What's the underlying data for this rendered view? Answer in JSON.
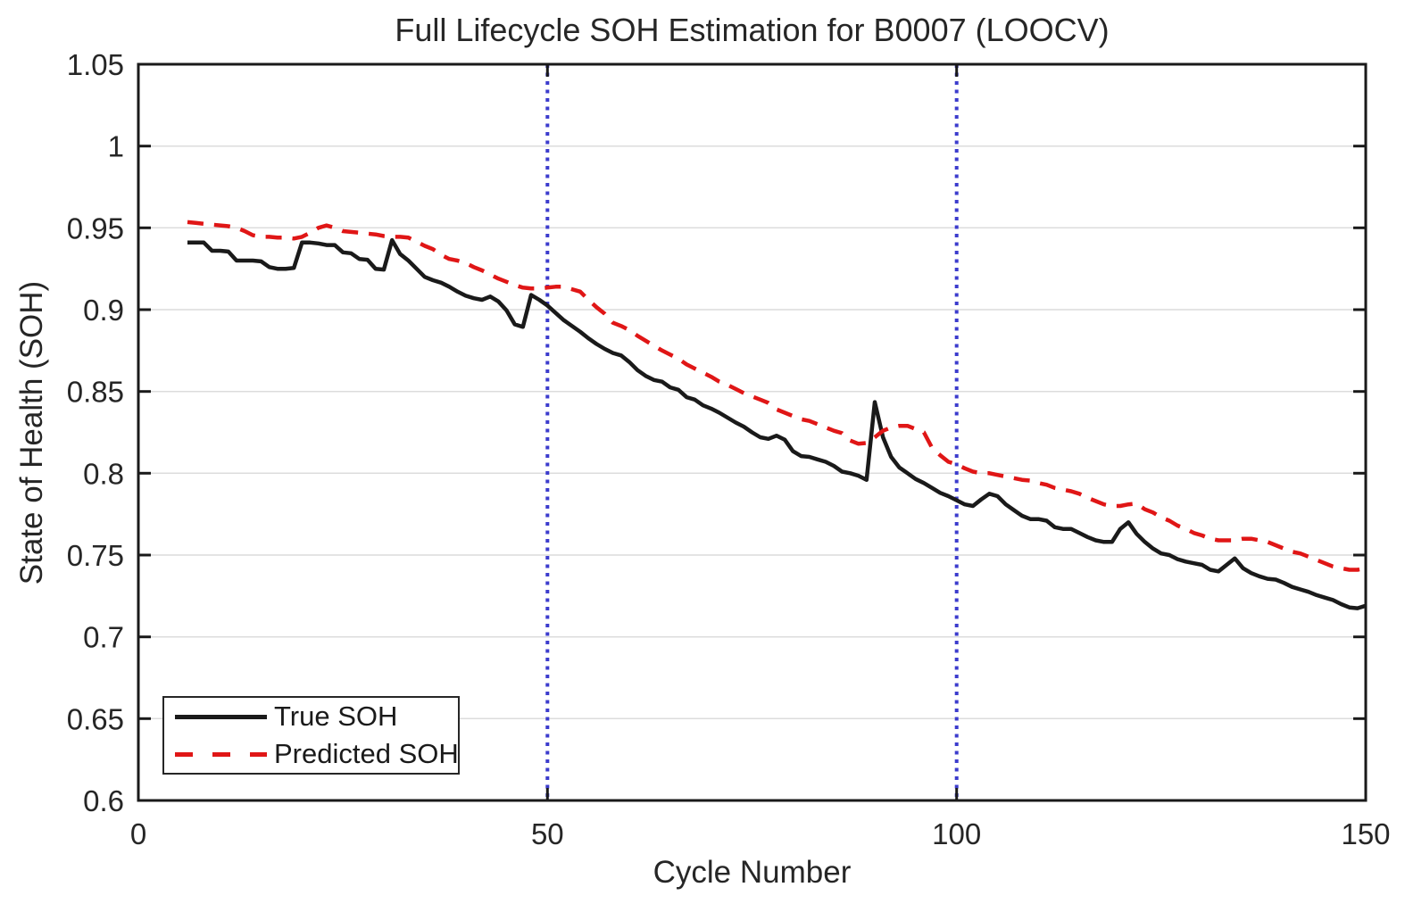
{
  "chart_data": {
    "type": "line",
    "title": "Full Lifecycle SOH Estimation for B0007 (LOOCV)",
    "xlabel": "Cycle Number",
    "ylabel": "State of Health (SOH)",
    "xlim": [
      0,
      150
    ],
    "ylim": [
      0.6,
      1.05
    ],
    "grid": "horizontal",
    "legend_position": "bottom-left",
    "x_ticks": [
      0,
      50,
      100,
      150
    ],
    "x_tick_labels": [
      "0",
      "50",
      "100",
      "150"
    ],
    "y_ticks": [
      0.6,
      0.65,
      0.7,
      0.75,
      0.8,
      0.85,
      0.9,
      0.95,
      1.0,
      1.05
    ],
    "y_tick_labels": [
      "0.6",
      "0.65",
      "0.7",
      "0.75",
      "0.8",
      "0.85",
      "0.9",
      "0.95",
      "1",
      "1.05"
    ],
    "vertical_markers": {
      "x": [
        50,
        100
      ],
      "color": "#3c3ccd",
      "style": "dotted"
    },
    "x": [
      6,
      7,
      8,
      9,
      10,
      11,
      12,
      13,
      14,
      15,
      16,
      17,
      18,
      19,
      20,
      21,
      22,
      23,
      24,
      25,
      26,
      27,
      28,
      29,
      30,
      31,
      32,
      33,
      34,
      35,
      36,
      37,
      38,
      39,
      40,
      41,
      42,
      43,
      44,
      45,
      46,
      47,
      48,
      49,
      50,
      51,
      52,
      53,
      54,
      55,
      56,
      57,
      58,
      59,
      60,
      61,
      62,
      63,
      64,
      65,
      66,
      67,
      68,
      69,
      70,
      71,
      72,
      73,
      74,
      75,
      76,
      77,
      78,
      79,
      80,
      81,
      82,
      83,
      84,
      85,
      86,
      87,
      88,
      89,
      90,
      91,
      92,
      93,
      94,
      95,
      96,
      97,
      98,
      99,
      100,
      101,
      102,
      103,
      104,
      105,
      106,
      107,
      108,
      109,
      110,
      111,
      112,
      113,
      114,
      115,
      116,
      117,
      118,
      119,
      120,
      121,
      122,
      123,
      124,
      125,
      126,
      127,
      128,
      129,
      130,
      131,
      132,
      133,
      134,
      135,
      136,
      137,
      138,
      139,
      140,
      141,
      142,
      143,
      144,
      145,
      146,
      147,
      148,
      149,
      150
    ],
    "series": [
      {
        "name": "True SOH",
        "color": "#1a1a1a",
        "style": "solid",
        "values": [
          0.941,
          0.941,
          0.941,
          0.936,
          0.936,
          0.9355,
          0.93,
          0.93,
          0.93,
          0.9295,
          0.926,
          0.925,
          0.925,
          0.9255,
          0.941,
          0.941,
          0.9405,
          0.9395,
          0.9395,
          0.935,
          0.9345,
          0.931,
          0.9305,
          0.925,
          0.9245,
          0.9425,
          0.934,
          0.93,
          0.925,
          0.92,
          0.918,
          0.9165,
          0.914,
          0.911,
          0.9085,
          0.907,
          0.906,
          0.908,
          0.905,
          0.8995,
          0.891,
          0.8895,
          0.909,
          0.906,
          0.9025,
          0.898,
          0.8935,
          0.89,
          0.8865,
          0.8825,
          0.879,
          0.876,
          0.8735,
          0.872,
          0.868,
          0.863,
          0.8595,
          0.857,
          0.856,
          0.8525,
          0.851,
          0.8465,
          0.845,
          0.8415,
          0.8395,
          0.837,
          0.834,
          0.831,
          0.8285,
          0.825,
          0.822,
          0.821,
          0.823,
          0.8205,
          0.8135,
          0.8105,
          0.81,
          0.8085,
          0.807,
          0.8045,
          0.801,
          0.8,
          0.7985,
          0.796,
          0.8435,
          0.822,
          0.81,
          0.8035,
          0.8,
          0.7965,
          0.794,
          0.791,
          0.788,
          0.786,
          0.7835,
          0.781,
          0.78,
          0.784,
          0.7875,
          0.786,
          0.781,
          0.7775,
          0.774,
          0.772,
          0.772,
          0.771,
          0.767,
          0.766,
          0.766,
          0.7635,
          0.761,
          0.759,
          0.758,
          0.758,
          0.766,
          0.77,
          0.763,
          0.758,
          0.754,
          0.751,
          0.75,
          0.7475,
          0.746,
          0.745,
          0.744,
          0.741,
          0.74,
          0.744,
          0.748,
          0.742,
          0.739,
          0.737,
          0.7355,
          0.735,
          0.733,
          0.7305,
          0.729,
          0.7275,
          0.7255,
          0.724,
          0.7225,
          0.72,
          0.718,
          0.7175,
          0.719
        ]
      },
      {
        "name": "Predicted SOH",
        "color": "#e01616",
        "style": "dashed",
        "values": [
          0.9535,
          0.953,
          0.9525,
          0.952,
          0.9515,
          0.951,
          0.95,
          0.948,
          0.9455,
          0.9445,
          0.9445,
          0.944,
          0.944,
          0.9435,
          0.9445,
          0.947,
          0.95,
          0.9515,
          0.95,
          0.948,
          0.9475,
          0.947,
          0.9465,
          0.946,
          0.945,
          0.9445,
          0.9445,
          0.944,
          0.9415,
          0.939,
          0.937,
          0.9335,
          0.931,
          0.93,
          0.9285,
          0.926,
          0.924,
          0.9215,
          0.919,
          0.917,
          0.915,
          0.9135,
          0.913,
          0.913,
          0.9135,
          0.914,
          0.914,
          0.9125,
          0.911,
          0.906,
          0.9015,
          0.8975,
          0.892,
          0.89,
          0.8875,
          0.884,
          0.881,
          0.878,
          0.875,
          0.8725,
          0.87,
          0.8665,
          0.864,
          0.8615,
          0.859,
          0.856,
          0.854,
          0.8515,
          0.849,
          0.847,
          0.845,
          0.843,
          0.839,
          0.837,
          0.835,
          0.833,
          0.832,
          0.83,
          0.828,
          0.826,
          0.8245,
          0.82,
          0.818,
          0.8185,
          0.822,
          0.826,
          0.828,
          0.829,
          0.829,
          0.827,
          0.825,
          0.8155,
          0.811,
          0.807,
          0.8055,
          0.803,
          0.801,
          0.8,
          0.8,
          0.799,
          0.798,
          0.797,
          0.796,
          0.7955,
          0.794,
          0.793,
          0.791,
          0.79,
          0.789,
          0.7875,
          0.785,
          0.783,
          0.781,
          0.78,
          0.78,
          0.781,
          0.7815,
          0.778,
          0.776,
          0.773,
          0.771,
          0.768,
          0.766,
          0.7635,
          0.762,
          0.76,
          0.759,
          0.759,
          0.759,
          0.76,
          0.76,
          0.759,
          0.758,
          0.756,
          0.754,
          0.752,
          0.751,
          0.749,
          0.747,
          0.745,
          0.743,
          0.742,
          0.741,
          0.741,
          0.742
        ]
      }
    ]
  },
  "legend": {
    "items": [
      {
        "label": "True SOH",
        "color": "#1a1a1a",
        "style": "solid"
      },
      {
        "label": "Predicted SOH",
        "color": "#e01616",
        "style": "dashed"
      }
    ]
  },
  "style": {
    "axis_color": "#1a1a1a",
    "grid_color": "#dcdcdc",
    "text_color": "#262626",
    "background": "#ffffff"
  }
}
